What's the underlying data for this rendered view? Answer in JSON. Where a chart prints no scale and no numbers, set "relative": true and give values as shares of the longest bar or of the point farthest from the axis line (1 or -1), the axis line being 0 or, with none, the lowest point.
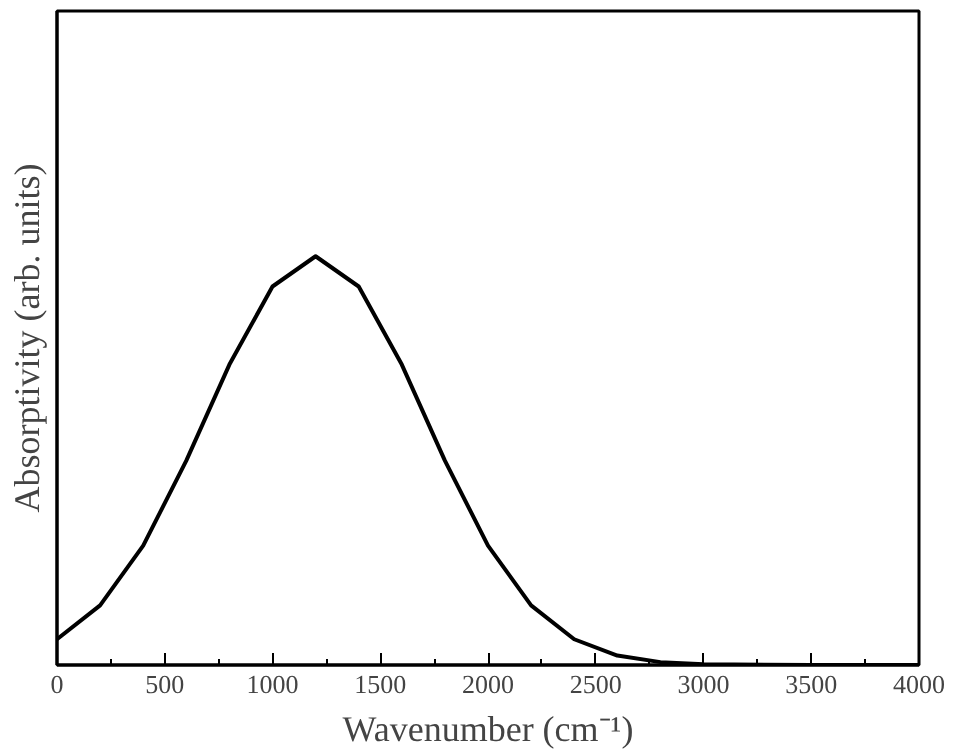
{
  "chart_data": {
    "type": "line",
    "relative": true,
    "xlabel": "Wavenumber (cm⁻¹)",
    "ylabel": "Absorptivity (arb. units)",
    "xlim": [
      0,
      4000
    ],
    "xticks": [
      0,
      500,
      1000,
      1500,
      2000,
      2500,
      3000,
      3500,
      4000
    ],
    "x": [
      0,
      200,
      400,
      600,
      800,
      1000,
      1200,
      1400,
      1600,
      1800,
      2000,
      2200,
      2400,
      2600,
      2800,
      3000,
      3500,
      4000
    ],
    "series": [
      {
        "color": "#000000",
        "values": [
          0.063,
          0.146,
          0.292,
          0.5,
          0.735,
          0.926,
          1,
          0.926,
          0.735,
          0.5,
          0.292,
          0.146,
          0.063,
          0.023,
          0.007,
          0.002,
          0,
          0
        ]
      }
    ],
    "grid": false,
    "marker": "none",
    "line_style": "solid"
  }
}
